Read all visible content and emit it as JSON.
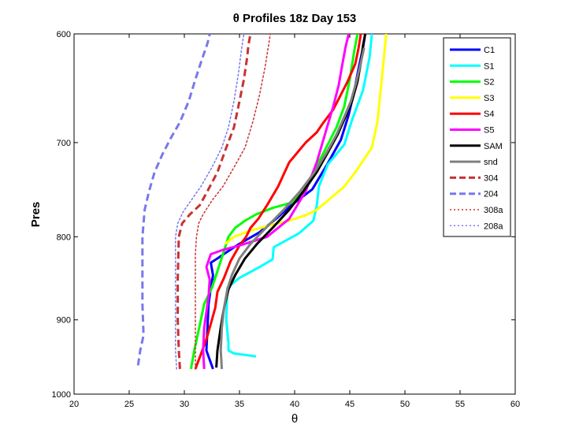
{
  "chart_data": {
    "type": "line",
    "title": "θ Profiles 18z Day 153",
    "xlabel": "θ",
    "ylabel": "Pres",
    "xlim": [
      20,
      60
    ],
    "ylim": [
      1000,
      600
    ],
    "y_scale": "log",
    "y_reversed": true,
    "xticks": [
      20,
      25,
      30,
      35,
      40,
      45,
      50,
      55,
      60
    ],
    "yticks": [
      600,
      700,
      800,
      900,
      1000
    ],
    "grid": false,
    "legend_position": "top-right",
    "series": [
      {
        "name": "C1",
        "color": "#0000ff",
        "style": "solid",
        "x": [
          32.6,
          32.0,
          32.1,
          32.2,
          32.4,
          32.6,
          32.4,
          33.0,
          33.8,
          35.0,
          36.8,
          38.5,
          39.6,
          41.6,
          42.9,
          44.2,
          44.9,
          45.4,
          45.8,
          46.2,
          46.4
        ],
        "y": [
          965,
          940,
          910,
          880,
          860,
          845,
          830,
          825,
          818,
          808,
          795,
          778,
          766,
          748,
          723,
          697,
          673,
          651,
          630,
          612,
          600
        ]
      },
      {
        "name": "S1",
        "color": "#00ffff",
        "style": "solid",
        "x": [
          36.5,
          34.5,
          34.0,
          34.0,
          33.8,
          33.9,
          35.0,
          36.7,
          38.0,
          38.1,
          40.4,
          41.7,
          42.0,
          42.2,
          43.0,
          44.5,
          45.2,
          46.2,
          46.8,
          47.0
        ],
        "y": [
          948,
          944,
          940,
          930,
          900,
          860,
          848,
          836,
          826,
          812,
          796,
          782,
          766,
          745,
          722,
          702,
          678,
          650,
          620,
          600
        ]
      },
      {
        "name": "S2",
        "color": "#00ff00",
        "style": "solid",
        "x": [
          30.6,
          30.9,
          31.2,
          31.5,
          31.8,
          32.5,
          33.0,
          33.5,
          34.0,
          34.6,
          35.5,
          36.5,
          38.0,
          39.8,
          40.8,
          42.4,
          43.8,
          44.5,
          45.0,
          45.4,
          45.7
        ],
        "y": [
          965,
          940,
          920,
          900,
          880,
          860,
          840,
          820,
          800,
          790,
          782,
          775,
          768,
          762,
          750,
          715,
          685,
          665,
          640,
          615,
          600
        ]
      },
      {
        "name": "S3",
        "color": "#ffff00",
        "style": "solid",
        "x": [
          33.7,
          34.5,
          36.0,
          37.8,
          39.5,
          41.0,
          42.0,
          43.2,
          44.5,
          45.5,
          47.0,
          47.5,
          47.8,
          48.1,
          48.3
        ],
        "y": [
          808,
          800,
          793,
          787,
          782,
          776,
          770,
          758,
          745,
          730,
          705,
          680,
          650,
          620,
          600
        ]
      },
      {
        "name": "S4",
        "color": "#ff0000",
        "style": "solid",
        "x": [
          31.0,
          31.5,
          32.0,
          32.4,
          32.8,
          33.0,
          33.6,
          34.2,
          35.0,
          35.6,
          36.0,
          36.7,
          37.5,
          38.5,
          39.5,
          41.0,
          42.0,
          42.5,
          43.5,
          44.8,
          45.5,
          45.8,
          46.0
        ],
        "y": [
          965,
          945,
          925,
          905,
          885,
          865,
          848,
          828,
          810,
          800,
          790,
          780,
          765,
          745,
          720,
          700,
          690,
          682,
          668,
          642,
          626,
          612,
          600
        ]
      },
      {
        "name": "S5",
        "color": "#ff00ff",
        "style": "solid",
        "x": [
          31.8,
          31.7,
          31.8,
          32.0,
          32.2,
          32.3,
          32.0,
          32.4,
          33.5,
          35.0,
          36.0,
          37.5,
          39.5,
          41.0,
          42.0,
          42.8,
          43.5,
          44.0,
          44.3,
          44.6,
          44.9
        ],
        "y": [
          965,
          940,
          910,
          890,
          870,
          850,
          835,
          820,
          815,
          810,
          806,
          800,
          780,
          750,
          720,
          690,
          665,
          645,
          628,
          612,
          600
        ]
      },
      {
        "name": "SAM",
        "color": "#000000",
        "style": "solid",
        "x": [
          32.9,
          33.0,
          33.3,
          33.6,
          34.0,
          34.6,
          35.5,
          36.6,
          38.0,
          39.5,
          40.8,
          42.0,
          43.0,
          43.9,
          44.6,
          45.2,
          45.7,
          46.0,
          46.2,
          46.4
        ],
        "y": [
          963,
          940,
          910,
          885,
          862,
          845,
          825,
          808,
          790,
          770,
          750,
          730,
          710,
          692,
          675,
          660,
          642,
          625,
          610,
          600
        ]
      },
      {
        "name": "snd",
        "color": "#808080",
        "style": "solid",
        "x": [
          33.4,
          33.3,
          33.4,
          33.6,
          33.9,
          34.3,
          35.0,
          36.0,
          37.4,
          39.0,
          40.5,
          41.8,
          42.9,
          43.8,
          44.5,
          45.1,
          45.6,
          46.0,
          46.3
        ],
        "y": [
          965,
          940,
          910,
          885,
          862,
          845,
          825,
          808,
          790,
          770,
          750,
          730,
          710,
          692,
          675,
          660,
          642,
          625,
          612
        ]
      },
      {
        "name": "304",
        "color": "#c83232",
        "style": "dashed",
        "x": [
          29.6,
          29.5,
          29.4,
          29.4,
          29.5,
          29.8,
          30.5,
          31.4,
          32.0,
          33.0,
          33.8,
          34.5,
          35.0,
          35.4,
          35.7,
          35.8,
          36.0
        ],
        "y": [
          965,
          940,
          900,
          850,
          800,
          785,
          775,
          765,
          752,
          730,
          705,
          685,
          660,
          640,
          620,
          610,
          600
        ]
      },
      {
        "name": "204",
        "color": "#7878f0",
        "style": "dashed",
        "x": [
          25.8,
          26.0,
          26.3,
          26.2,
          26.2,
          26.2,
          26.4,
          26.8,
          27.3,
          28.0,
          28.8,
          29.6,
          30.4,
          31.0,
          31.6,
          32.1,
          32.3
        ],
        "y": [
          960,
          940,
          920,
          880,
          840,
          800,
          770,
          750,
          730,
          712,
          695,
          680,
          660,
          640,
          622,
          608,
          600
        ]
      },
      {
        "name": "308a",
        "color": "#c83232",
        "style": "dotted",
        "x": [
          31.0,
          31.0,
          31.0,
          31.0,
          31.0,
          31.1,
          31.3,
          31.7,
          32.5,
          33.5,
          34.5,
          35.5,
          36.2,
          36.8,
          37.3,
          37.6,
          37.8
        ],
        "y": [
          965,
          940,
          900,
          850,
          820,
          800,
          785,
          775,
          760,
          745,
          725,
          705,
          680,
          655,
          630,
          612,
          600
        ]
      },
      {
        "name": "208a",
        "color": "#7878f0",
        "style": "dotted",
        "x": [
          29.3,
          29.2,
          29.2,
          29.2,
          29.2,
          29.4,
          29.9,
          30.6,
          31.5,
          32.5,
          33.4,
          34.0,
          34.5,
          34.9,
          35.2,
          35.4
        ],
        "y": [
          965,
          940,
          900,
          850,
          800,
          785,
          772,
          760,
          745,
          725,
          705,
          685,
          660,
          635,
          612,
          600
        ]
      }
    ]
  }
}
